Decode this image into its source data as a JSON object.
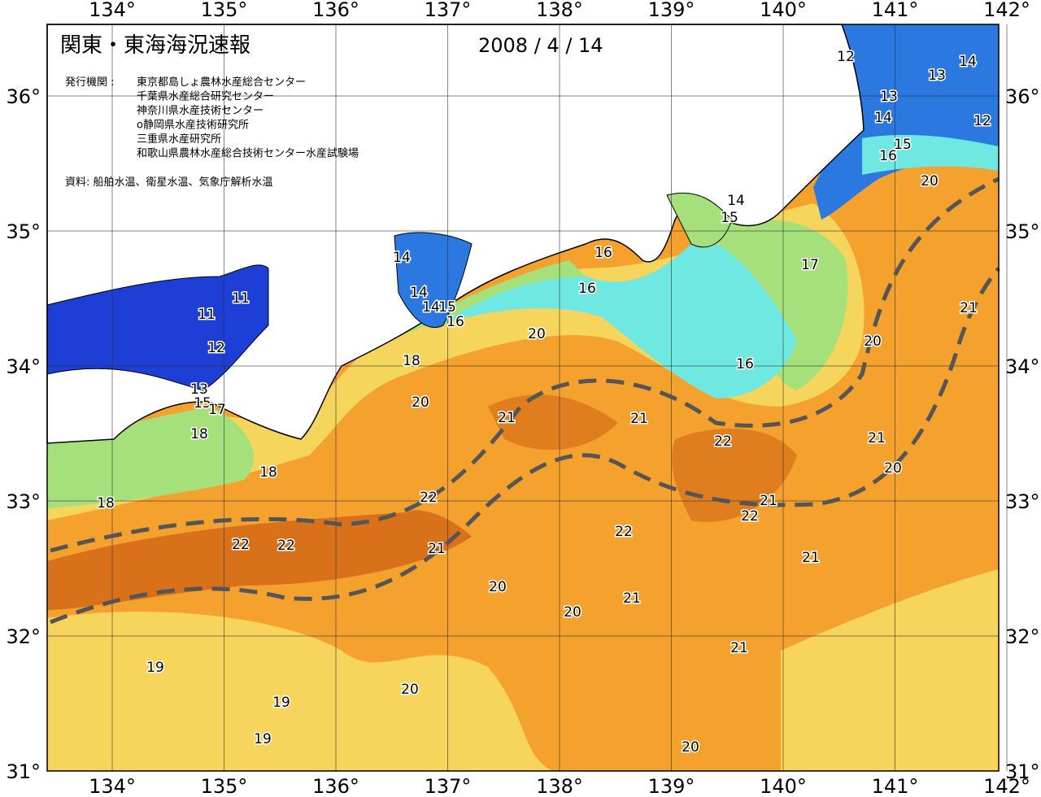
{
  "header": {
    "title": "関東・東海海況速報",
    "date": "2008 / 4 / 14"
  },
  "issuer": {
    "label": "発行機関 :",
    "agencies": [
      "東京都島しょ農林水産総合センター",
      "千葉県水産総合研究センター",
      "神奈川県水産技術センター",
      "o静岡県水産技術研究所",
      "三重県水産研究所",
      "和歌山県農林水産総合技術センター水産試験場"
    ]
  },
  "source": "資料: 船舶水温、衛星水温、気象庁解析水温",
  "axes": {
    "lon_top": [
      "134°",
      "135°",
      "136°",
      "137°",
      "138°",
      "139°",
      "140°",
      "141°",
      "142°"
    ],
    "lon_bottom": [
      "134°",
      "135°",
      "136°",
      "137°",
      "138°",
      "139°",
      "140°",
      "141°",
      "142°"
    ],
    "lat_left": [
      "36°",
      "35°",
      "34°",
      "33°",
      "32°",
      "31°"
    ],
    "lat_right": [
      "36°",
      "35°",
      "34°",
      "33°",
      "32°",
      "31°"
    ]
  },
  "contour_labels": [
    "12",
    "13",
    "14",
    "13",
    "14",
    "12",
    "15",
    "16",
    "20",
    "14",
    "15",
    "16",
    "17",
    "16",
    "14",
    "11",
    "11",
    "14",
    "14",
    "15",
    "16",
    "20",
    "12",
    "18",
    "20",
    "21",
    "16",
    "13",
    "15",
    "17",
    "20",
    "21",
    "21",
    "18",
    "22",
    "21",
    "20",
    "18",
    "18",
    "22",
    "21",
    "22",
    "22",
    "22",
    "22",
    "21",
    "21",
    "20",
    "21",
    "20",
    "21",
    "19",
    "20",
    "19",
    "19",
    "20"
  ]
}
